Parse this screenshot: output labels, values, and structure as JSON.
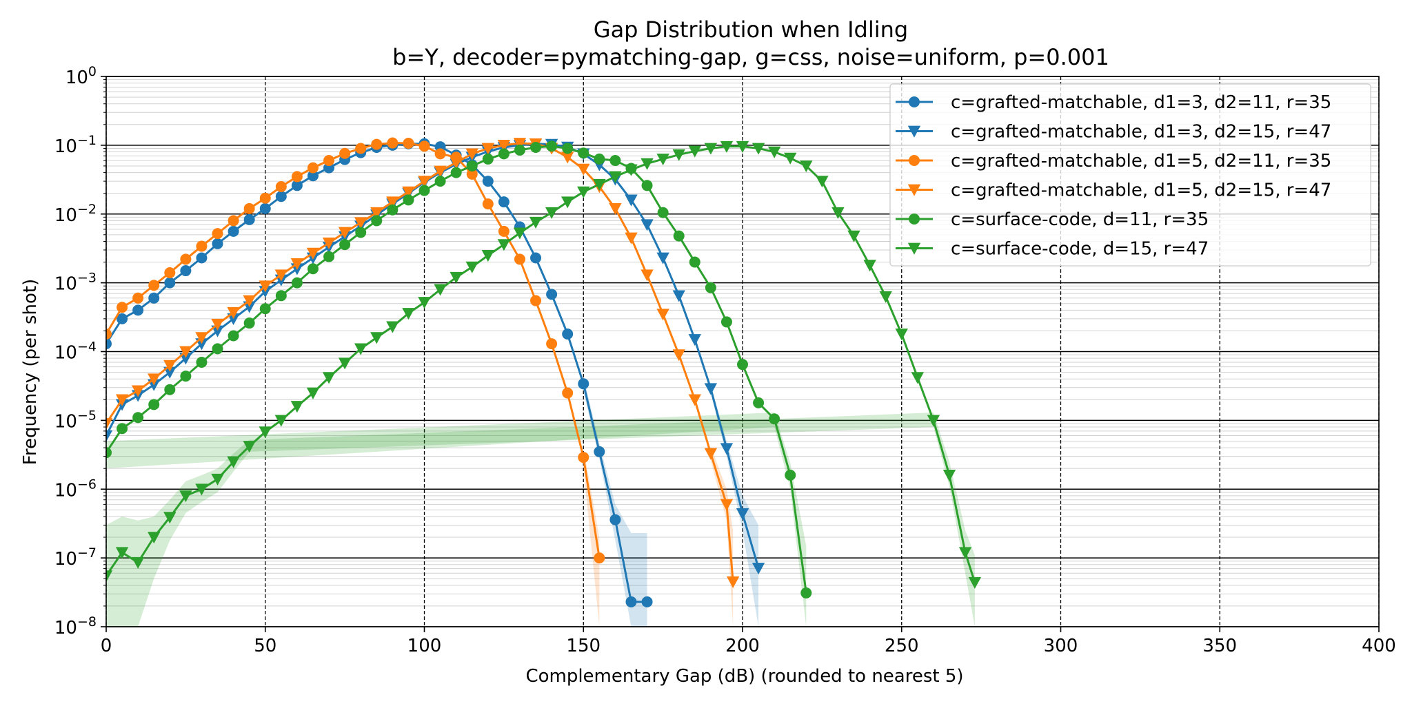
{
  "chart_data": {
    "type": "line",
    "title": "Gap Distribution when Idling",
    "subtitle": "b=Y, decoder=pymatching-gap, g=css, noise=uniform, p=0.001",
    "xlabel": "Complementary Gap (dB) (rounded to nearest 5)",
    "ylabel": "Frequency (per shot)",
    "xlim": [
      0,
      400
    ],
    "ylim": [
      1e-08,
      1
    ],
    "yscale": "log",
    "grid": true,
    "legend_position": "top-right",
    "x_ticks": [
      {
        "value": 0,
        "label": "0"
      },
      {
        "value": 50,
        "label": "50"
      },
      {
        "value": 100,
        "label": "100"
      },
      {
        "value": 150,
        "label": "150"
      },
      {
        "value": 200,
        "label": "200"
      },
      {
        "value": 250,
        "label": "250"
      },
      {
        "value": 300,
        "label": "300"
      },
      {
        "value": 350,
        "label": "350"
      },
      {
        "value": 400,
        "label": "400"
      }
    ],
    "y_ticks": [
      {
        "exp": 0,
        "base": "10",
        "sup": "0"
      },
      {
        "exp": -1,
        "base": "10",
        "sup": "−1"
      },
      {
        "exp": -2,
        "base": "10",
        "sup": "−2"
      },
      {
        "exp": -3,
        "base": "10",
        "sup": "−3"
      },
      {
        "exp": -4,
        "base": "10",
        "sup": "−4"
      },
      {
        "exp": -5,
        "base": "10",
        "sup": "−5"
      },
      {
        "exp": -6,
        "base": "10",
        "sup": "−6"
      },
      {
        "exp": -7,
        "base": "10",
        "sup": "−7"
      },
      {
        "exp": -8,
        "base": "10",
        "sup": "−8"
      }
    ],
    "series": [
      {
        "name": "c=grafted-matchable, d1=3, d2=11, r=35",
        "color": "#1f77b4",
        "marker": "circle",
        "x": [
          0,
          5,
          10,
          15,
          20,
          25,
          30,
          35,
          40,
          45,
          50,
          55,
          60,
          65,
          70,
          75,
          80,
          85,
          90,
          95,
          100,
          105,
          110,
          115,
          120,
          125,
          130,
          135,
          140,
          145,
          150,
          155,
          160,
          165,
          170
        ],
        "y": [
          0.00013,
          0.0003,
          0.0004,
          0.0006,
          0.001,
          0.0015,
          0.0023,
          0.0037,
          0.0056,
          0.0083,
          0.012,
          0.018,
          0.026,
          0.036,
          0.047,
          0.062,
          0.078,
          0.093,
          0.1,
          0.105,
          0.105,
          0.095,
          0.072,
          0.052,
          0.03,
          0.015,
          0.0065,
          0.0023,
          0.00068,
          0.00018,
          3.4e-05,
          3.5e-06,
          3.6e-07,
          2.3e-08,
          2.3e-08
        ],
        "band": [
          [
            150,
            2.6e-05,
            4.4e-05
          ],
          [
            155,
            2.8e-06,
            4.6e-06
          ],
          [
            160,
            1.8e-07,
            6e-07
          ],
          [
            165,
            1e-08,
            2.3e-07
          ],
          [
            170,
            1e-08,
            2.3e-07
          ]
        ]
      },
      {
        "name": "c=grafted-matchable, d1=3, d2=15, r=47",
        "color": "#1f77b4",
        "marker": "triangle-down",
        "x": [
          0,
          5,
          10,
          15,
          20,
          25,
          30,
          35,
          40,
          45,
          50,
          55,
          60,
          65,
          70,
          75,
          80,
          85,
          90,
          95,
          100,
          105,
          110,
          115,
          120,
          125,
          130,
          135,
          140,
          145,
          150,
          155,
          160,
          165,
          170,
          175,
          180,
          185,
          190,
          195,
          200,
          205
        ],
        "y": [
          6e-06,
          1.7e-05,
          2.3e-05,
          3.3e-05,
          5e-05,
          8e-05,
          0.00013,
          0.0002,
          0.0003,
          0.00045,
          0.00075,
          0.0011,
          0.0016,
          0.0023,
          0.0033,
          0.0047,
          0.0067,
          0.0097,
          0.014,
          0.02,
          0.029,
          0.04,
          0.053,
          0.067,
          0.081,
          0.093,
          0.1,
          0.105,
          0.103,
          0.094,
          0.075,
          0.052,
          0.032,
          0.016,
          0.007,
          0.0023,
          0.00065,
          0.00015,
          2.9e-05,
          3.9e-06,
          4.4e-07,
          7.1e-08
        ],
        "band": [
          [
            190,
            2.5e-05,
            3.3e-05
          ],
          [
            195,
            3e-06,
            5e-06
          ],
          [
            200,
            2.5e-07,
            8e-07
          ],
          [
            205,
            1e-08,
            3e-07
          ]
        ]
      },
      {
        "name": "c=grafted-matchable, d1=5, d2=11, r=35",
        "color": "#ff7f0e",
        "marker": "circle",
        "x": [
          0,
          5,
          10,
          15,
          20,
          25,
          30,
          35,
          40,
          45,
          50,
          55,
          60,
          65,
          70,
          75,
          80,
          85,
          90,
          95,
          100,
          105,
          110,
          115,
          120,
          125,
          130,
          135,
          140,
          145,
          150,
          155
        ],
        "y": [
          0.00018,
          0.00044,
          0.0006,
          0.00092,
          0.0014,
          0.0022,
          0.0034,
          0.0052,
          0.008,
          0.012,
          0.017,
          0.025,
          0.035,
          0.047,
          0.06,
          0.076,
          0.09,
          0.103,
          0.108,
          0.107,
          0.097,
          0.075,
          0.067,
          0.038,
          0.014,
          0.0056,
          0.0022,
          0.00055,
          0.00013,
          2.5e-05,
          2.9e-06,
          1e-07
        ],
        "band": [
          [
            150,
            2e-06,
            4e-06
          ],
          [
            155,
            1e-08,
            2e-07
          ]
        ]
      },
      {
        "name": "c=grafted-matchable, d1=5, d2=15, r=47",
        "color": "#ff7f0e",
        "marker": "triangle-down",
        "x": [
          0,
          5,
          10,
          15,
          20,
          25,
          30,
          35,
          40,
          45,
          50,
          55,
          60,
          65,
          70,
          75,
          80,
          85,
          90,
          95,
          100,
          105,
          110,
          115,
          120,
          125,
          130,
          135,
          140,
          145,
          150,
          155,
          160,
          165,
          170,
          175,
          180,
          185,
          190,
          195,
          197
        ],
        "y": [
          9e-06,
          2e-05,
          2.7e-05,
          4e-05,
          6.3e-05,
          0.0001,
          0.00016,
          0.00025,
          0.00037,
          0.00055,
          0.0009,
          0.0013,
          0.0019,
          0.0027,
          0.0038,
          0.0054,
          0.0075,
          0.0105,
          0.015,
          0.021,
          0.03,
          0.042,
          0.056,
          0.075,
          0.09,
          0.1,
          0.107,
          0.105,
          0.09,
          0.067,
          0.045,
          0.025,
          0.012,
          0.0045,
          0.0013,
          0.00035,
          9e-05,
          2e-05,
          3.3e-06,
          6e-07,
          4.5e-08
        ],
        "band": [
          [
            190,
            2.6e-06,
            4.2e-06
          ],
          [
            195,
            3.5e-07,
            1e-06
          ],
          [
            197,
            1e-08,
            2.5e-07
          ]
        ]
      },
      {
        "name": "c=surface-code, d=11, r=35",
        "color": "#2ca02c",
        "marker": "circle",
        "x": [
          0,
          5,
          10,
          15,
          20,
          25,
          30,
          35,
          40,
          45,
          50,
          55,
          60,
          65,
          70,
          75,
          80,
          85,
          90,
          95,
          100,
          105,
          110,
          115,
          120,
          125,
          130,
          135,
          140,
          145,
          150,
          155,
          160,
          165,
          170,
          175,
          180,
          185,
          190,
          195,
          200,
          205,
          210,
          215,
          220
        ],
        "y": [
          3.4e-06,
          7.6e-06,
          1.1e-05,
          1.7e-05,
          2.8e-05,
          4.4e-05,
          7e-05,
          0.00011,
          0.00017,
          0.00026,
          0.00042,
          0.00065,
          0.001,
          0.0016,
          0.0024,
          0.0036,
          0.0054,
          0.008,
          0.0115,
          0.016,
          0.022,
          0.03,
          0.04,
          0.05,
          0.063,
          0.075,
          0.085,
          0.093,
          0.097,
          0.09,
          0.077,
          0.063,
          0.06,
          0.046,
          0.026,
          0.0105,
          0.0048,
          0.002,
          0.00085,
          0.00027,
          6.5e-05,
          1.8e-05,
          1.05e-05,
          1.6e-06,
          3.1e-08
        ],
        "band": [
          [
            0,
            2e-06,
            5e-06
          ],
          [
            210,
            8e-06,
            1.3e-05
          ],
          [
            215,
            1e-06,
            2.4e-06
          ],
          [
            220,
            1e-08,
            1.5e-07
          ]
        ]
      },
      {
        "name": "c=surface-code, d=15, r=47",
        "color": "#2ca02c",
        "marker": "triangle-down",
        "x": [
          0,
          5,
          10,
          15,
          20,
          25,
          30,
          35,
          40,
          45,
          50,
          55,
          60,
          65,
          70,
          75,
          80,
          85,
          90,
          95,
          100,
          105,
          110,
          115,
          120,
          125,
          130,
          135,
          140,
          145,
          150,
          155,
          160,
          165,
          170,
          175,
          180,
          185,
          190,
          195,
          200,
          205,
          210,
          215,
          220,
          225,
          230,
          235,
          240,
          245,
          250,
          255,
          260,
          265,
          270,
          273
        ],
        "y": [
          5.5e-08,
          1.2e-07,
          8.6e-08,
          2e-07,
          3.9e-07,
          8e-07,
          1e-06,
          1.4e-06,
          2.5e-06,
          4.2e-06,
          6.8e-06,
          1e-05,
          1.6e-05,
          2.5e-05,
          4.2e-05,
          6.8e-05,
          0.00011,
          0.00016,
          0.00023,
          0.00036,
          0.00052,
          0.0008,
          0.0012,
          0.0017,
          0.0025,
          0.0036,
          0.0053,
          0.0076,
          0.0105,
          0.015,
          0.021,
          0.027,
          0.035,
          0.044,
          0.054,
          0.063,
          0.073,
          0.082,
          0.09,
          0.096,
          0.096,
          0.09,
          0.08,
          0.065,
          0.05,
          0.03,
          0.0105,
          0.0048,
          0.0018,
          0.00063,
          0.00018,
          4.2e-05,
          1e-05,
          1.6e-06,
          1.2e-07,
          4.4e-08
        ],
        "band": [
          [
            0,
            1e-08,
            3e-07
          ],
          [
            5,
            1e-08,
            4e-07
          ],
          [
            10,
            1e-08,
            3.5e-07
          ],
          [
            15,
            5e-08,
            4e-07
          ],
          [
            20,
            1.8e-07,
            7e-07
          ],
          [
            25,
            4.5e-07,
            1.3e-06
          ],
          [
            30,
            6.5e-07,
            1.6e-06
          ],
          [
            35,
            9e-07,
            2e-06
          ],
          [
            40,
            1.8e-06,
            3.3e-06
          ],
          [
            45,
            3.5e-06,
            5.2e-06
          ],
          [
            260,
            8e-06,
            1.3e-05
          ],
          [
            265,
            1.1e-06,
            2.5e-06
          ],
          [
            270,
            6e-08,
            2.5e-07
          ],
          [
            273,
            1e-08,
            1.1e-07
          ]
        ]
      }
    ]
  }
}
